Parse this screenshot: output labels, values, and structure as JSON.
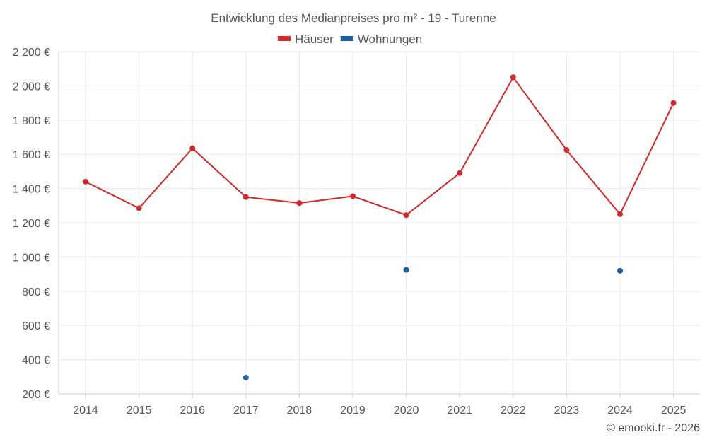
{
  "chart_data": {
    "type": "line",
    "title": "Entwicklung des Medianpreises pro m² - 19 - Turenne",
    "categories": [
      "2014",
      "2015",
      "2016",
      "2017",
      "2018",
      "2019",
      "2020",
      "2021",
      "2022",
      "2023",
      "2024",
      "2025"
    ],
    "series": [
      {
        "name": "Häuser",
        "color": "#d62728",
        "values": [
          1440,
          1285,
          1635,
          1350,
          1315,
          1355,
          1245,
          1490,
          2050,
          1625,
          1250,
          1900
        ]
      },
      {
        "name": "Wohnungen",
        "color": "#1f5fa0",
        "values": [
          null,
          null,
          null,
          295,
          null,
          null,
          925,
          null,
          null,
          null,
          920,
          null
        ]
      }
    ],
    "ylim": [
      200,
      2200
    ],
    "yticks": [
      200,
      400,
      600,
      800,
      1000,
      1200,
      1400,
      1600,
      1800,
      2000,
      2200
    ],
    "ytick_labels": [
      "200 €",
      "400 €",
      "600 €",
      "800 €",
      "1 000 €",
      "1 200 €",
      "1 400 €",
      "1 600 €",
      "1 800 €",
      "2 000 €",
      "2 200 €"
    ],
    "xlabel": "",
    "ylabel": "",
    "legend_position": "top-center",
    "grid": true
  },
  "footer": "© emooki.fr - 2026"
}
